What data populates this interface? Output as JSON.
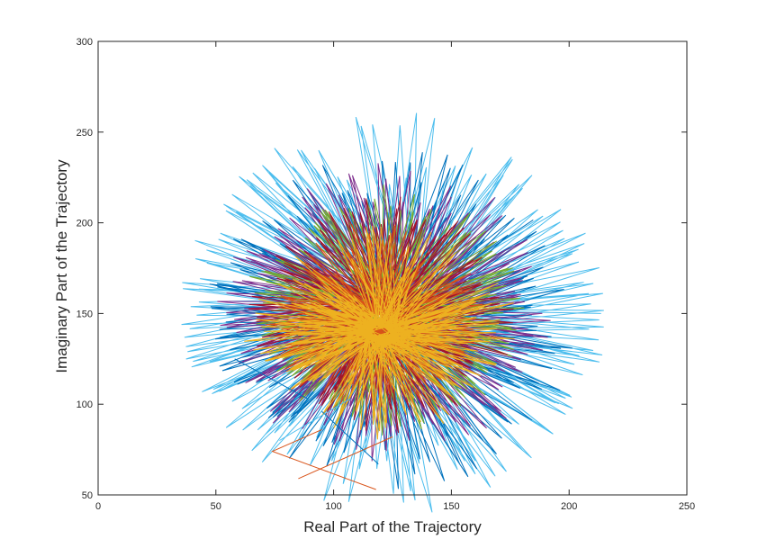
{
  "chart_data": {
    "type": "line",
    "title": "",
    "xlabel": "Real Part of the Trajectory",
    "ylabel": "Imaginary Part of the Trajectory",
    "xlim": [
      0,
      250
    ],
    "ylim": [
      50,
      300
    ],
    "xticks": [
      0,
      50,
      100,
      150,
      200,
      250
    ],
    "yticks": [
      50,
      100,
      150,
      200,
      250,
      300
    ],
    "xtick_labels": [
      "0",
      "50",
      "100",
      "150",
      "200",
      "250"
    ],
    "ytick_labels": [
      "50",
      "100",
      "150",
      "200",
      "250",
      "300"
    ],
    "grid": false,
    "legend": "none",
    "series_colors": [
      "#0072BD",
      "#D95319",
      "#EDB120",
      "#7E2F8E",
      "#77AC30",
      "#4DBEEE",
      "#A2142F"
    ],
    "series": [
      {
        "color": "#4DBEEE",
        "center": [
          125,
          150
        ],
        "rx": [
          82,
          92
        ],
        "ry": [
          70,
          112
        ],
        "spokes": 150,
        "phase": 0.0
      },
      {
        "color": "#0072BD",
        "center": [
          124,
          146
        ],
        "rx": [
          60,
          80
        ],
        "ry": [
          58,
          100
        ],
        "spokes": 120,
        "phase": 0.7
      },
      {
        "color": "#7E2F8E",
        "center": [
          122,
          150
        ],
        "rx": [
          55,
          72
        ],
        "ry": [
          52,
          85
        ],
        "spokes": 120,
        "phase": 1.3
      },
      {
        "color": "#77AC30",
        "center": [
          122,
          152
        ],
        "rx": [
          45,
          62
        ],
        "ry": [
          45,
          70
        ],
        "spokes": 110,
        "phase": 2.1
      },
      {
        "color": "#A2142F",
        "center": [
          120,
          150
        ],
        "rx": [
          38,
          58
        ],
        "ry": [
          40,
          68
        ],
        "spokes": 110,
        "phase": 2.7
      },
      {
        "color": "#D95319",
        "center": [
          118,
          146
        ],
        "rx": [
          28,
          48
        ],
        "ry": [
          30,
          55
        ],
        "spokes": 110,
        "phase": 0.4
      },
      {
        "color": "#EDB120",
        "center": [
          120,
          140
        ],
        "rx": [
          30,
          60
        ],
        "ry": [
          20,
          60
        ],
        "spokes": 160,
        "phase": 1.9
      }
    ],
    "outliers": [
      {
        "color": "#D95319",
        "x": [
          95,
          74,
          118
        ],
        "y": [
          86,
          74,
          53
        ]
      },
      {
        "color": "#D95319",
        "x": [
          85,
          125
        ],
        "y": [
          59,
          82
        ]
      },
      {
        "color": "#0072BD",
        "x": [
          95,
          119
        ],
        "y": [
          96,
          67
        ]
      },
      {
        "color": "#0072BD",
        "x": [
          58,
          89
        ],
        "y": [
          125,
          103
        ]
      },
      {
        "color": "#4DBEEE",
        "x": [
          77,
          107
        ],
        "y": [
          80,
          103
        ]
      }
    ]
  }
}
